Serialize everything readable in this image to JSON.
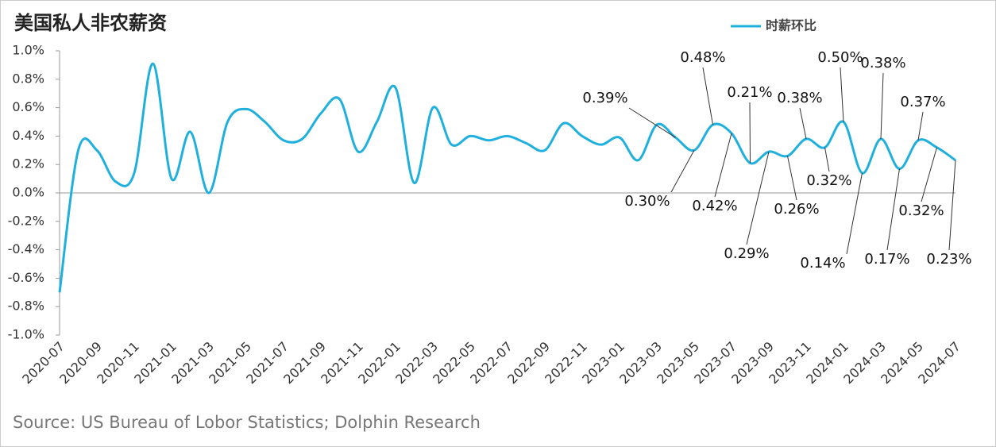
{
  "chart_data": {
    "type": "line",
    "title": "美国私人非农薪资",
    "source": "Source: US Bureau of Lobor Statistics; Dolphin Research",
    "categories": [
      "2020-07",
      null,
      "2020-09",
      null,
      "2020-11",
      null,
      "2021-01",
      null,
      "2021-03",
      null,
      "2021-05",
      null,
      "2021-07",
      null,
      "2021-09",
      null,
      "2021-11",
      null,
      "2022-01",
      null,
      "2022-03",
      null,
      "2022-05",
      null,
      "2022-07",
      null,
      "2022-09",
      null,
      "2022-11",
      null,
      "2023-01",
      null,
      "2023-03",
      null,
      "2023-05",
      null,
      "2023-07",
      null,
      "2023-09",
      null,
      "2023-11",
      null,
      "2024-01",
      null,
      "2024-03",
      null,
      "2024-05",
      null,
      "2024-07"
    ],
    "series": [
      {
        "name": "时薪环比",
        "color": "#1fb0dd",
        "values": [
          -0.7,
          0.3,
          0.3,
          0.08,
          0.14,
          0.91,
          0.1,
          0.43,
          0.0,
          0.5,
          0.59,
          0.5,
          0.37,
          0.38,
          0.56,
          0.66,
          0.29,
          0.5,
          0.74,
          0.07,
          0.6,
          0.34,
          0.4,
          0.37,
          0.4,
          0.35,
          0.3,
          0.49,
          0.4,
          0.34,
          0.39,
          0.23,
          0.48,
          0.39,
          0.3,
          0.48,
          0.42,
          0.21,
          0.29,
          0.26,
          0.38,
          0.32,
          0.5,
          0.14,
          0.38,
          0.17,
          0.37,
          0.32,
          0.23
        ],
        "value_labels": [
          null,
          null,
          null,
          null,
          null,
          null,
          null,
          null,
          null,
          null,
          null,
          null,
          null,
          null,
          null,
          null,
          null,
          null,
          null,
          null,
          null,
          null,
          null,
          null,
          null,
          null,
          null,
          null,
          null,
          null,
          null,
          null,
          null,
          "0.39%",
          "0.30%",
          "0.48%",
          "0.42%",
          "0.21%",
          "0.29%",
          "0.26%",
          "0.38%",
          "0.32%",
          "0.50%",
          "0.14%",
          "0.38%",
          "0.17%",
          "0.37%",
          "0.32%",
          "0.23%"
        ]
      }
    ],
    "ylim": [
      -1.0,
      1.0
    ],
    "yticks": [
      {
        "value": -1.0,
        "label": "-1.0%"
      },
      {
        "value": -0.8,
        "label": "-0.8%"
      },
      {
        "value": -0.6,
        "label": "-0.6%"
      },
      {
        "value": -0.4,
        "label": "-0.4%"
      },
      {
        "value": -0.2,
        "label": "-0.2%"
      },
      {
        "value": 0.0,
        "label": "0.0%"
      },
      {
        "value": 0.2,
        "label": "0.2%"
      },
      {
        "value": 0.4,
        "label": "0.4%"
      },
      {
        "value": 0.6,
        "label": "0.6%"
      },
      {
        "value": 0.8,
        "label": "0.8%"
      },
      {
        "value": 1.0,
        "label": "1.0%"
      }
    ],
    "grid": false,
    "legend": "top"
  }
}
